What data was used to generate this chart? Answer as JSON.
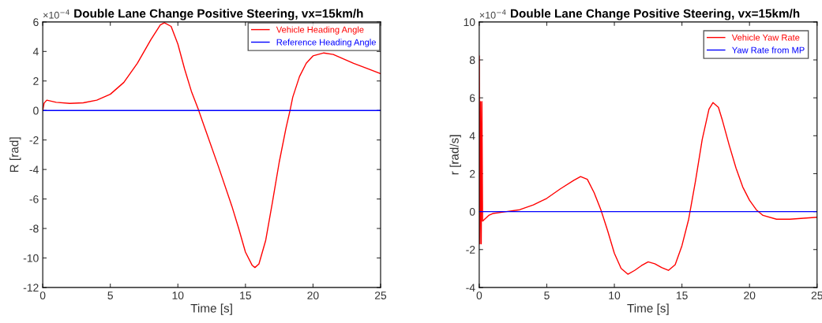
{
  "chart_data": [
    {
      "type": "line",
      "title": "Double Lane Change Positive Steering, vx=15km/h",
      "xlabel": "Time [s]",
      "ylabel": "R [rad]",
      "annotations": [
        "×10$^{−4}$"
      ],
      "xlim": [
        0,
        25
      ],
      "xticks": [
        0,
        5,
        10,
        15,
        20,
        25
      ],
      "ylim": [
        -12,
        6
      ],
      "yticks": [
        -12,
        -10,
        -8,
        -6,
        -4,
        -2,
        0,
        2,
        4,
        6
      ],
      "grid": false,
      "legend": "top right",
      "series": [
        {
          "name": "Vehicle Heading Angle",
          "color": "#ff0000",
          "x": [
            0,
            0.1,
            0.3,
            1,
            2,
            3,
            4,
            5,
            6,
            7,
            8,
            8.7,
            9,
            9.5,
            10,
            10.5,
            11,
            11.5,
            12,
            13,
            14,
            14.5,
            15,
            15.5,
            15.7,
            16,
            16.5,
            17,
            17.5,
            18,
            18.3,
            18.5,
            19,
            19.5,
            20,
            20.8,
            21.5,
            22,
            23,
            24,
            25
          ],
          "values": [
            0,
            0.5,
            0.7,
            0.55,
            0.48,
            0.52,
            0.7,
            1.1,
            1.9,
            3.2,
            4.8,
            5.8,
            5.95,
            5.7,
            4.5,
            2.8,
            1.3,
            0.1,
            -1.2,
            -3.8,
            -6.5,
            -8.0,
            -9.6,
            -10.5,
            -10.65,
            -10.4,
            -8.8,
            -6.2,
            -3.5,
            -1.2,
            0,
            0.9,
            2.3,
            3.2,
            3.7,
            3.9,
            3.8,
            3.6,
            3.2,
            2.85,
            2.5
          ]
        },
        {
          "name": "Reference Heading Angle",
          "color": "#0000ff",
          "x": [
            0,
            25
          ],
          "values": [
            0,
            0
          ]
        }
      ]
    },
    {
      "type": "line",
      "title": "Double Lane Change Positive Steering, vx=15km/h",
      "xlabel": "Time [s]",
      "ylabel": "r [rad/s]",
      "annotations": [
        "×10$^{−4}$"
      ],
      "xlim": [
        0,
        25
      ],
      "xticks": [
        0,
        5,
        10,
        15,
        20,
        25
      ],
      "ylim": [
        -4,
        10
      ],
      "yticks": [
        -4,
        -2,
        0,
        2,
        4,
        6,
        8,
        10
      ],
      "grid": false,
      "legend": "top right",
      "series": [
        {
          "name": "Vehicle Yaw Rate",
          "color": "#ff0000",
          "x": [
            0,
            0.05,
            0.1,
            0.15,
            0.2,
            0.25,
            0.4,
            0.7,
            1,
            2,
            3,
            4,
            5,
            6,
            7,
            7.5,
            8,
            8.5,
            9,
            9.5,
            10,
            10.5,
            11,
            11.5,
            12,
            12.5,
            13,
            13.5,
            14,
            14.5,
            15,
            15.5,
            16,
            16.5,
            17,
            17.3,
            17.7,
            18,
            18.5,
            19,
            19.5,
            20,
            20.5,
            21,
            22,
            23,
            24,
            25
          ],
          "values": [
            8.2,
            -1.7,
            5.8,
            -1.7,
            5.8,
            -0.5,
            -0.4,
            -0.2,
            -0.1,
            0,
            0.1,
            0.35,
            0.7,
            1.2,
            1.65,
            1.85,
            1.7,
            1.0,
            0.1,
            -1.0,
            -2.2,
            -3.0,
            -3.3,
            -3.1,
            -2.85,
            -2.65,
            -2.75,
            -2.95,
            -3.1,
            -2.8,
            -1.8,
            -0.4,
            1.6,
            3.8,
            5.4,
            5.75,
            5.5,
            4.8,
            3.5,
            2.3,
            1.3,
            0.6,
            0.1,
            -0.2,
            -0.4,
            -0.4,
            -0.35,
            -0.3
          ]
        },
        {
          "name": "Yaw Rate from MP",
          "color": "#0000ff",
          "x": [
            0,
            25
          ],
          "values": [
            0,
            0
          ]
        }
      ]
    }
  ]
}
